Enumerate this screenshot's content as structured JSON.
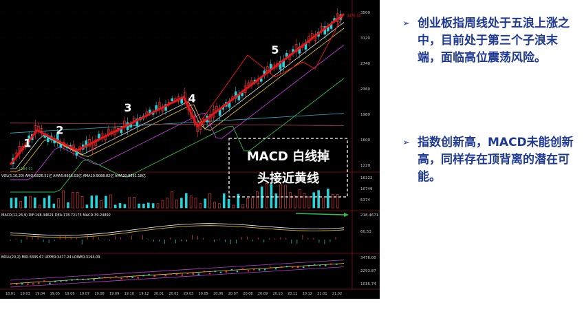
{
  "notes": [
    {
      "bullet": "➢",
      "text": "创业板指周线处于五浪上涨之中，目前处于第三个子浪末端，面临高位震荡风险。"
    },
    {
      "bullet": "➢",
      "text": "指数创新高，MACD未能创新高，同样存在顶背离的潜在可能。"
    }
  ],
  "annotation": {
    "line1": "MACD 白线掉",
    "line2": "头接近黄线"
  },
  "colors": {
    "wave": "#e8141b",
    "up": "#ff3b3b",
    "down": "#27d3d9",
    "dif": "#ffffff",
    "dea": "#f2d21b",
    "ma_purple": "#c03bd6",
    "ma_green": "#2fbf4a",
    "ma_cyan": "#2ab3c8",
    "bg": "#000000",
    "note": "#1f3a93"
  },
  "chart_data": {
    "type": "line",
    "price_axis_ticks": [
      "3500",
      "3120",
      "2740",
      "2360",
      "1980",
      "1600",
      "1220"
    ],
    "price_axis_range": [
      1220,
      3500
    ],
    "volume_axis_ticks": [
      "16122",
      "10749",
      "5374"
    ],
    "macd_axis_ticks": [
      "218.4671",
      "60.53"
    ],
    "boll_axis_ticks": [
      "3476.00",
      "2293.87",
      "1035.74"
    ],
    "date_ticks": [
      "18.01",
      "19.03",
      "19.04",
      "19.05",
      "19.06",
      "19.07",
      "19.08",
      "19.09",
      "19.10",
      "19.12",
      "20.01",
      "20.02",
      "20.03",
      "20.05",
      "20.06",
      "20.07",
      "20.08",
      "20.09",
      "20.10",
      "20.11",
      "20.12",
      "21.01",
      "21.02"
    ],
    "wave_labels": [
      "1",
      "2",
      "3",
      "4",
      "5"
    ],
    "wave_points": [
      {
        "date": "2019.01",
        "value": 1230
      },
      {
        "date": "2019.03",
        "value": 1740
      },
      {
        "date": "2019.06",
        "value": 1440
      },
      {
        "date": "2020.02",
        "value": 2240
      },
      {
        "date": "2020.03",
        "value": 1800
      },
      {
        "date": "2021.02",
        "value": 3476
      }
    ],
    "low_label": "1184.91",
    "high_label": "3476.00",
    "indicator_labels": {
      "volume": [
        "VOL(5,10,20)",
        "AMO:6826.51亿",
        "AMA5:9936.03亿",
        "AMA10:9088.82亿",
        "AMA20:8861.18亿"
      ],
      "macd": [
        "MACD(12,26,9)",
        "DIF:198.34621",
        "DEA:178.72175",
        "MACD:39.24892"
      ],
      "boll": [
        "BOLL(20,2)",
        "MID:3335.67",
        "UPPER:3477.24",
        "LOWER:3194.09"
      ]
    }
  }
}
